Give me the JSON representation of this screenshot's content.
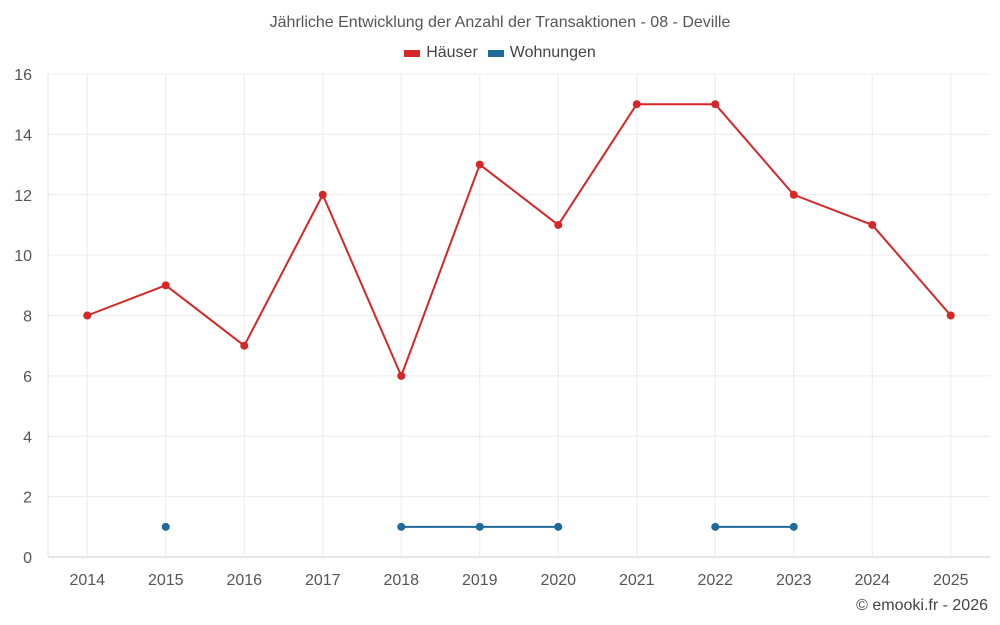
{
  "chart_data": {
    "type": "line",
    "title": "Jährliche Entwicklung der Anzahl der Transaktionen - 08 - Deville",
    "categories": [
      "2014",
      "2015",
      "2016",
      "2017",
      "2018",
      "2019",
      "2020",
      "2021",
      "2022",
      "2023",
      "2024",
      "2025"
    ],
    "series": [
      {
        "name": "Häuser",
        "color": "#d62728",
        "values": [
          8,
          9,
          7,
          12,
          6,
          13,
          11,
          15,
          15,
          12,
          11,
          8
        ]
      },
      {
        "name": "Wohnungen",
        "color": "#1f6a9a",
        "values": [
          null,
          1,
          null,
          null,
          1,
          1,
          1,
          null,
          1,
          1,
          null,
          null
        ]
      }
    ],
    "ylim": [
      0,
      16
    ],
    "yticks": [
      0,
      2,
      4,
      6,
      8,
      10,
      12,
      14,
      16
    ],
    "grid": true,
    "legend_position": "top-center",
    "xlabel": "",
    "ylabel": ""
  },
  "credit": "© emooki.fr - 2026"
}
